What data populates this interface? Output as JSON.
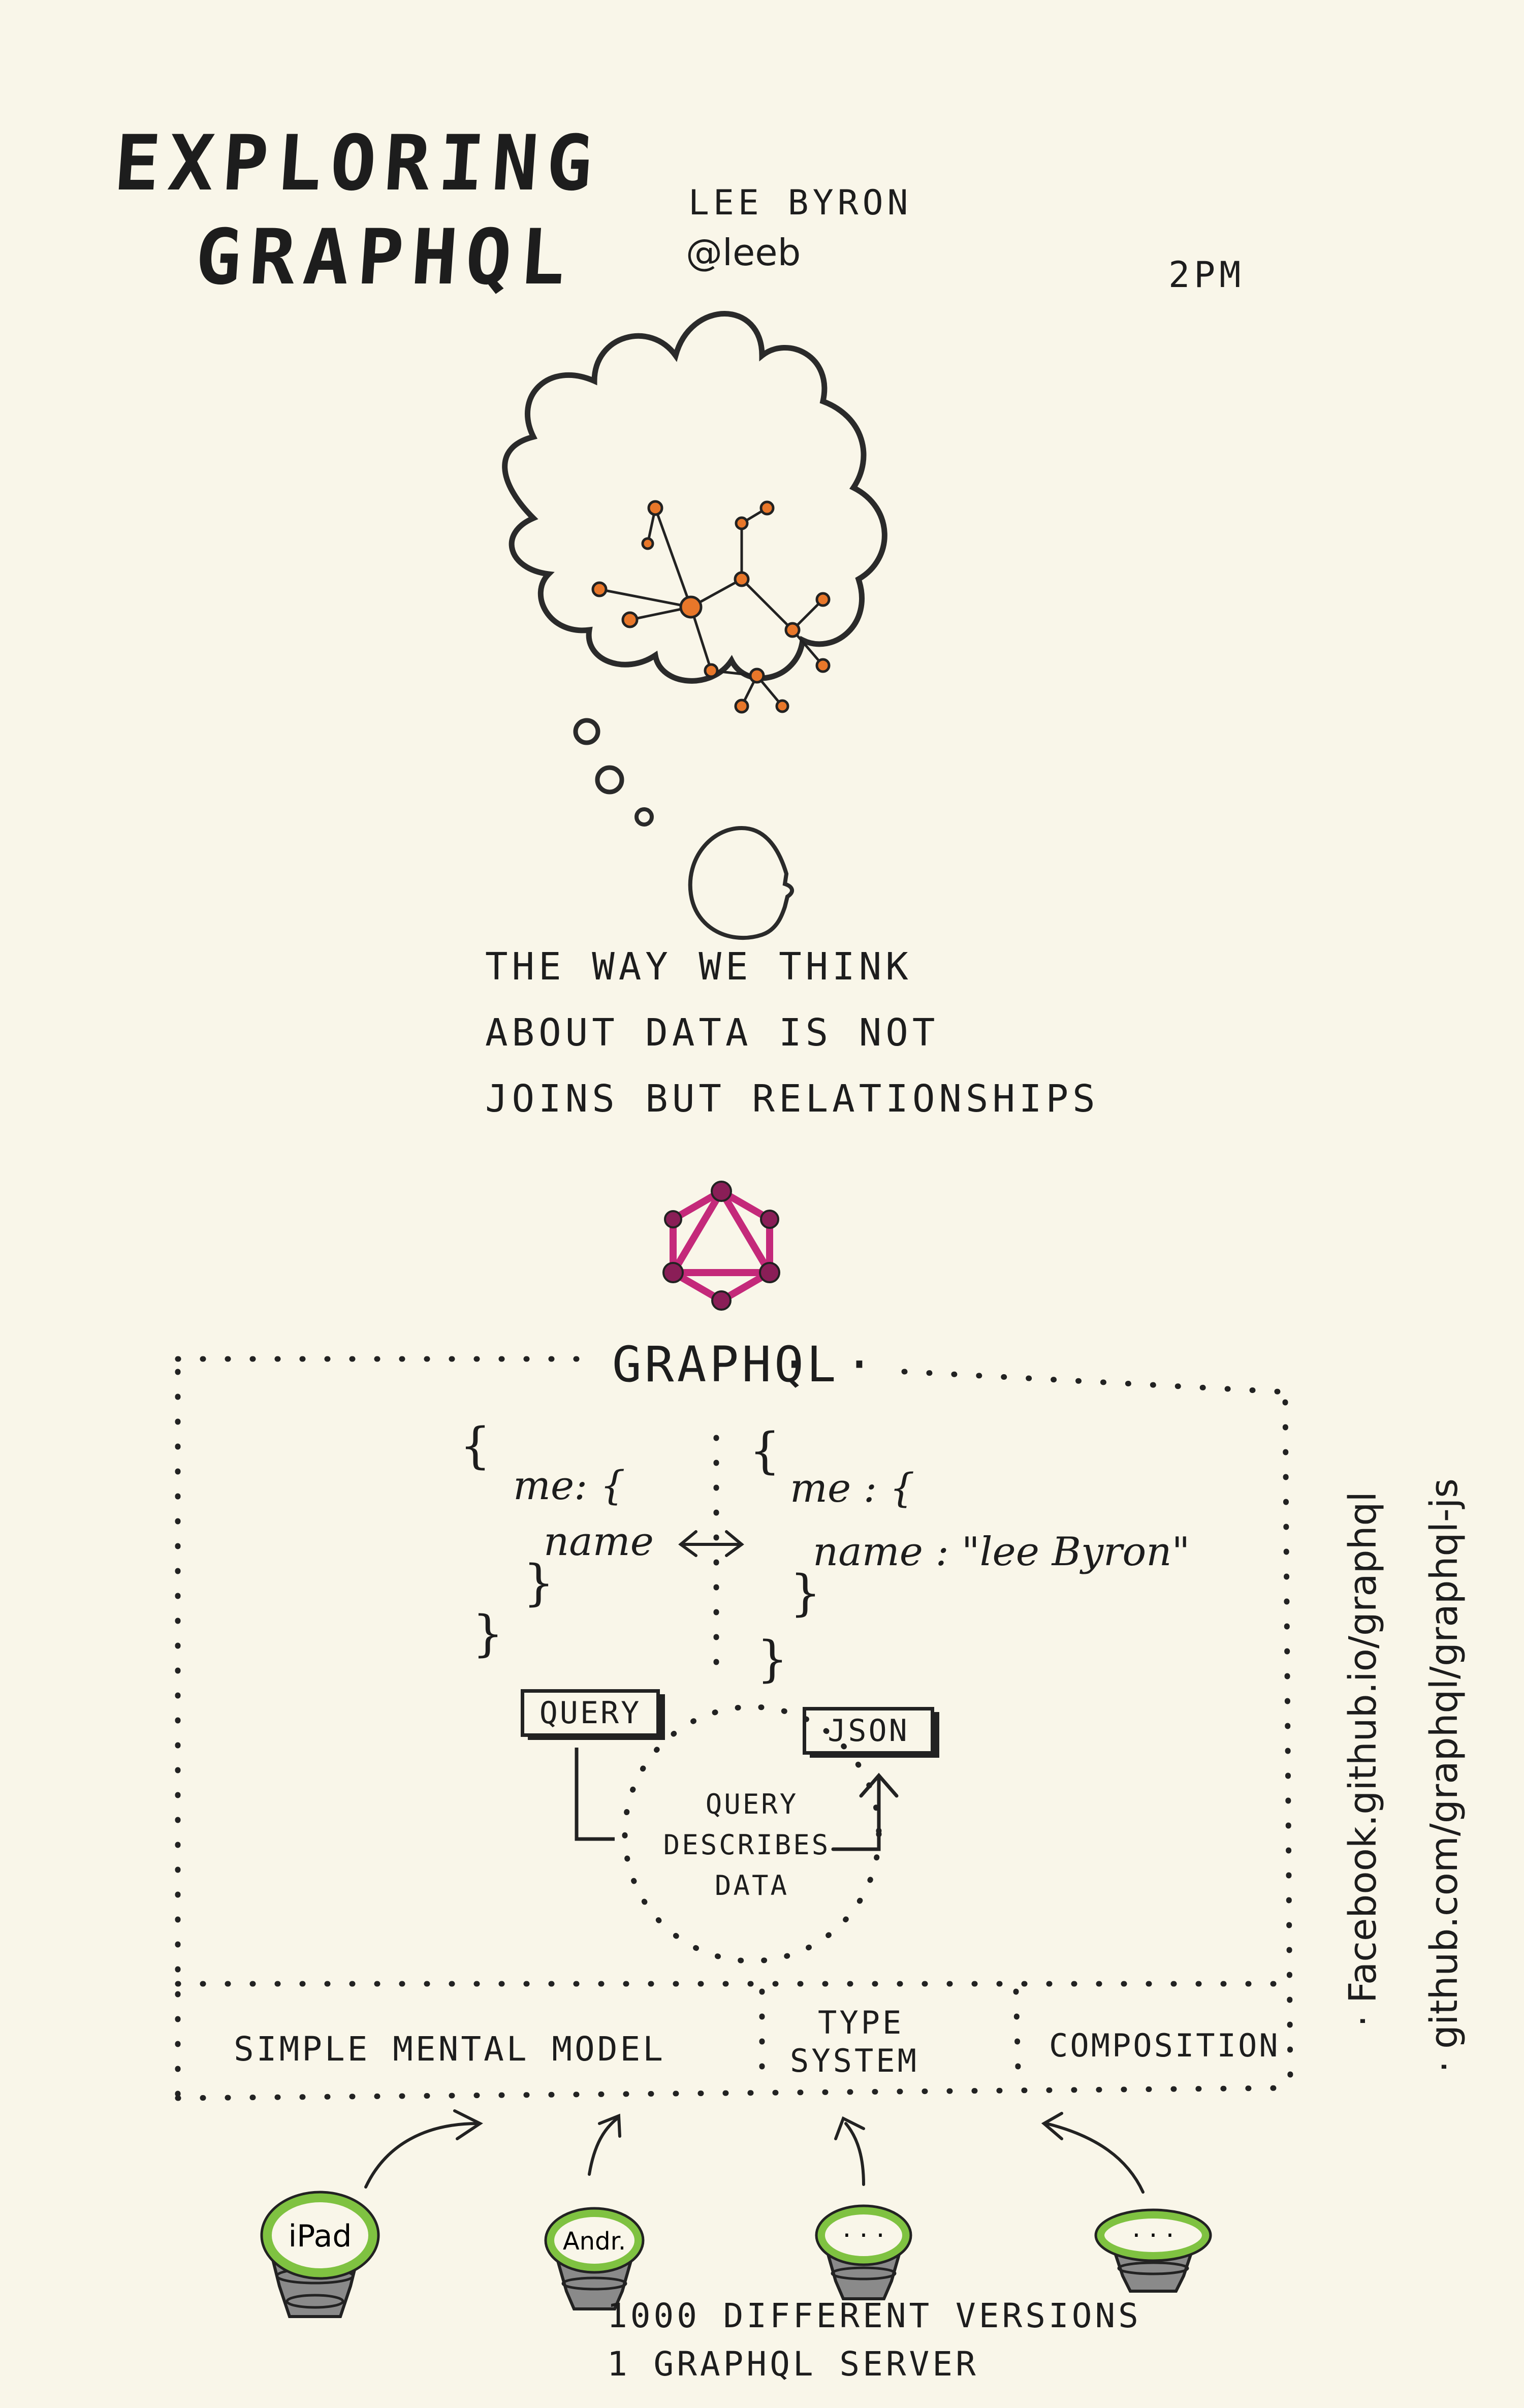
{
  "header": {
    "title_line1": "EXPLORING",
    "title_line2": "GRAPHQL",
    "speaker_name": "LEE BYRON",
    "speaker_handle": "@leeb",
    "time": "2PM"
  },
  "thought": {
    "line1": "THE WAY WE THINK",
    "line2": "ABOUT DATA IS NOT",
    "line3": "JOINS BUT RELATIONSHIPS"
  },
  "graphql_box": {
    "title": "GRAPHQL",
    "query": {
      "open": "{",
      "me": "me: {",
      "name": "name",
      "inner_close": "}",
      "close": "}"
    },
    "json": {
      "open": "{",
      "me": "me : {",
      "name": "name : \"lee Byron\"",
      "inner_close": "}",
      "close": "}"
    },
    "query_label": "QUERY",
    "json_label": "JSON",
    "center_note": {
      "line1": "QUERY",
      "line2": "DESCRIBES",
      "line3": "DATA"
    },
    "features": {
      "simple": "SIMPLE MENTAL MODEL",
      "type_line1": "TYPE",
      "type_line2": "SYSTEM",
      "composition": "COMPOSITION"
    }
  },
  "links": {
    "link1": "· Facebook.github.io/graphql",
    "link2": "· github.com/graphql/graphql-js"
  },
  "devices": {
    "ipad": "iPad",
    "android": "Andr.",
    "dots3": "· · ·",
    "dots4": "· · ·"
  },
  "footer": {
    "line1": "1000 DIFFERENT VERSIONS",
    "line2": "1 GRAPHQL SERVER"
  },
  "colors": {
    "ink": "#1d1d1d",
    "orange": "#e8772a",
    "magenta": "#c4297a",
    "green": "#7fc241",
    "grey": "#8a8a8a"
  }
}
